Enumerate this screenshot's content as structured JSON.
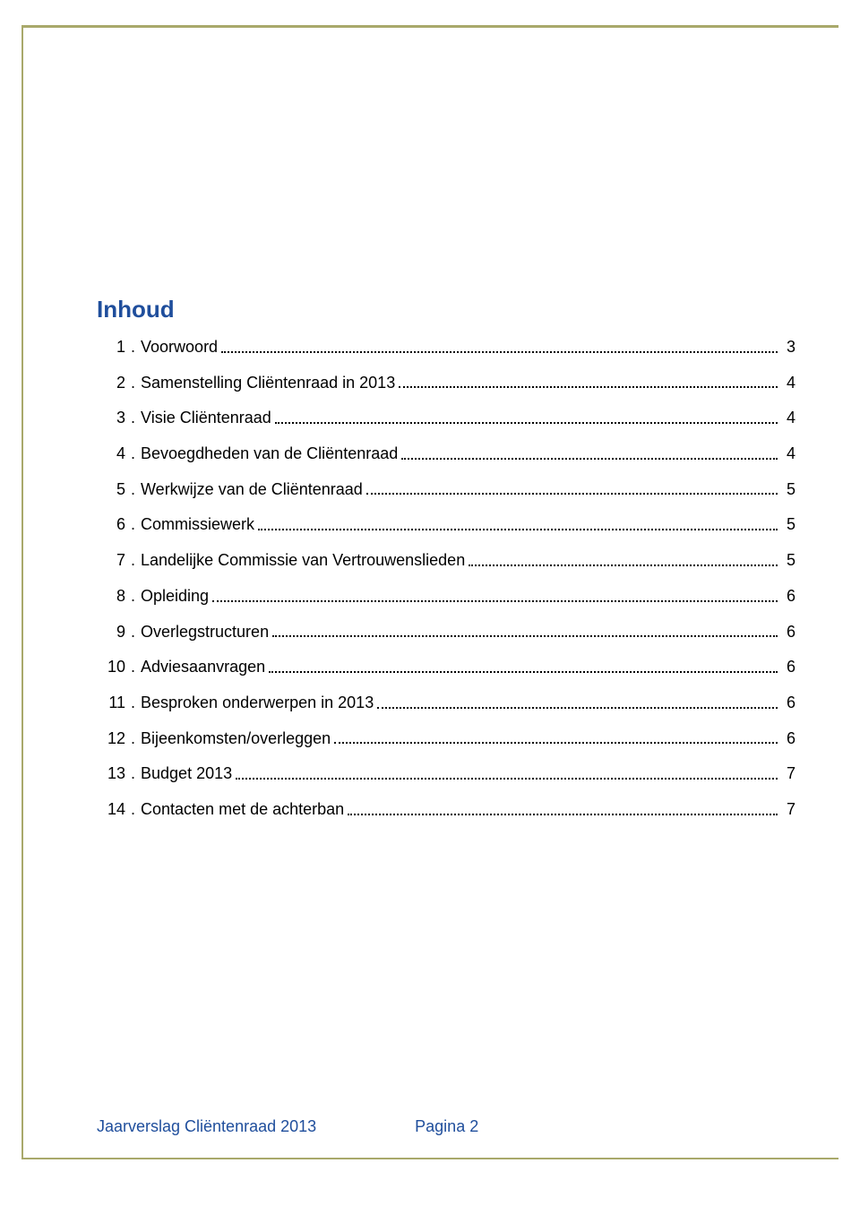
{
  "colors": {
    "rule": "#a9a96b",
    "heading": "#1f4e9c",
    "footer": "#1f4e9c",
    "text": "#000000",
    "background": "#ffffff"
  },
  "heading": "Inhoud",
  "toc": {
    "items": [
      {
        "n": "1",
        "title": "Voorwoord",
        "page": "3"
      },
      {
        "n": "2",
        "title": "Samenstelling Cliëntenraad in 2013",
        "page": "4"
      },
      {
        "n": "3",
        "title": "Visie Cliëntenraad",
        "page": "4"
      },
      {
        "n": "4",
        "title": "Bevoegdheden van de Cliëntenraad",
        "page": "4"
      },
      {
        "n": "5",
        "title": "Werkwijze van de Cliëntenraad",
        "page": "5"
      },
      {
        "n": "6",
        "title": "Commissiewerk",
        "page": "5"
      },
      {
        "n": "7",
        "title": "Landelijke Commissie van Vertrouwenslieden",
        "page": "5"
      },
      {
        "n": "8",
        "title": "Opleiding",
        "page": "6"
      },
      {
        "n": "9",
        "title": "Overlegstructuren",
        "page": "6"
      },
      {
        "n": "10",
        "title": "Adviesaanvragen",
        "page": "6"
      },
      {
        "n": "11",
        "title": "Besproken onderwerpen in 2013",
        "page": "6"
      },
      {
        "n": "12",
        "title": "Bijeenkomsten/overleggen",
        "page": "6"
      },
      {
        "n": "13",
        "title": "Budget 2013",
        "page": "7"
      },
      {
        "n": "14",
        "title": "Contacten met de achterban",
        "page": "7"
      }
    ]
  },
  "footer": {
    "title": "Jaarverslag Cliëntenraad 2013",
    "page_label": "Pagina 2"
  }
}
